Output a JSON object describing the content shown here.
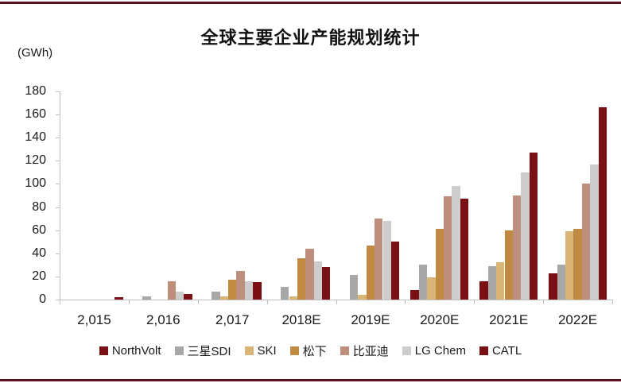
{
  "page": {
    "title": "全球主要企业产能规划统计",
    "unit_label": "(GWh)"
  },
  "colors": {
    "border_rule": "#5c0f20",
    "axis": "#bfbfbf",
    "text": "#1a1a1a"
  },
  "chart_data": {
    "type": "bar",
    "title": "全球主要企业产能规划统计",
    "ylabel": "(GWh)",
    "xlabel": "",
    "categories": [
      "2,015",
      "2,016",
      "2,017",
      "2018E",
      "2019E",
      "2020E",
      "2021E",
      "2022E"
    ],
    "series": [
      {
        "name": "NorthVolt",
        "color": "#7a1013",
        "values": [
          0,
          0,
          0,
          0,
          0,
          8,
          16,
          23
        ]
      },
      {
        "name": "三星SDI",
        "color": "#a8a8a8",
        "values": [
          0,
          3,
          7,
          11,
          21,
          30,
          29,
          30
        ]
      },
      {
        "name": "SKI",
        "color": "#d9b578",
        "values": [
          0,
          0,
          3,
          3,
          4,
          19,
          32,
          59
        ]
      },
      {
        "name": "松下",
        "color": "#c18a43",
        "values": [
          0,
          0,
          17,
          36,
          47,
          61,
          60,
          61
        ]
      },
      {
        "name": "比亚迪",
        "color": "#be8f7d",
        "values": [
          0,
          16,
          25,
          44,
          70,
          89,
          90,
          100
        ]
      },
      {
        "name": "LG Chem",
        "color": "#cdcdcd",
        "values": [
          0,
          7,
          16,
          33,
          68,
          98,
          110,
          117
        ]
      },
      {
        "name": "CATL",
        "color": "#7a1013",
        "values": [
          2,
          5,
          15,
          28,
          50,
          87,
          127,
          166
        ]
      }
    ],
    "ylim": [
      0,
      180
    ],
    "yticks": [
      0,
      20,
      40,
      60,
      80,
      100,
      120,
      140,
      160,
      180
    ],
    "grid": false,
    "legend_position": "bottom"
  }
}
